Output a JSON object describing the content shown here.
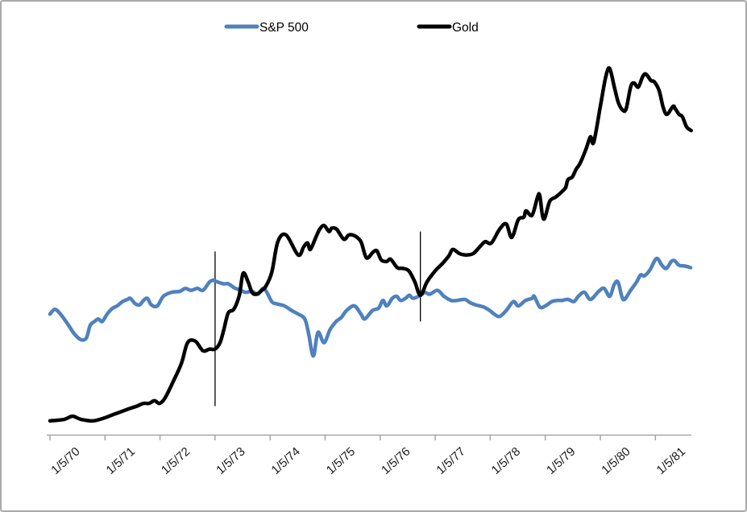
{
  "page": {
    "background": "#ffffff",
    "border_color": "#a9a9a9"
  },
  "chart_data": {
    "type": "line",
    "title": "",
    "x_axis": {
      "tick_labels": [
        "1/5/70",
        "1/5/71",
        "1/5/72",
        "1/5/73",
        "1/5/74",
        "1/5/75",
        "1/5/76",
        "1/5/77",
        "1/5/78",
        "1/5/79",
        "1/5/80",
        "1/5/81"
      ],
      "axis_color": "#a6a6a6",
      "label_color": "#1a1a1a",
      "range_years": [
        1970.0,
        1981.65
      ]
    },
    "y_axis": {
      "visible": false,
      "tick_labels": [],
      "scale": "log",
      "units_note": "axis unlabeled; values are estimated price levels (Gold $/oz, S&P 500 index) on implied log scale"
    },
    "legend": {
      "position": "top",
      "items": [
        {
          "label": "S&P 500",
          "color": "#4F81BD"
        },
        {
          "label": "Gold",
          "color": "#000000"
        }
      ]
    },
    "annotations": [
      {
        "name": "vertical-marker-jan-1973",
        "x": 1973.0,
        "v_from": 40,
        "v_to": 162
      },
      {
        "name": "vertical-marker-late-1976",
        "x": 1976.73,
        "v_from": 86,
        "v_to": 194
      }
    ],
    "series": [
      {
        "name": "S&P 500",
        "color": "#4F81BD",
        "width": 4.5,
        "points": [
          [
            1970.0,
            92
          ],
          [
            1970.09,
            96
          ],
          [
            1970.19,
            92
          ],
          [
            1970.34,
            83
          ],
          [
            1970.44,
            77
          ],
          [
            1970.56,
            73
          ],
          [
            1970.66,
            74
          ],
          [
            1970.73,
            83
          ],
          [
            1970.81,
            86
          ],
          [
            1970.88,
            88
          ],
          [
            1970.95,
            86
          ],
          [
            1971.04,
            92
          ],
          [
            1971.14,
            97
          ],
          [
            1971.22,
            99
          ],
          [
            1971.32,
            103
          ],
          [
            1971.41,
            105
          ],
          [
            1971.46,
            106
          ],
          [
            1971.55,
            101
          ],
          [
            1971.63,
            100
          ],
          [
            1971.7,
            104
          ],
          [
            1971.77,
            106
          ],
          [
            1971.84,
            100
          ],
          [
            1971.95,
            99
          ],
          [
            1972.06,
            108
          ],
          [
            1972.21,
            112
          ],
          [
            1972.36,
            113
          ],
          [
            1972.46,
            116
          ],
          [
            1972.56,
            114
          ],
          [
            1972.68,
            116
          ],
          [
            1972.78,
            114
          ],
          [
            1972.9,
            123
          ],
          [
            1972.97,
            125
          ],
          [
            1973.0,
            124
          ],
          [
            1973.15,
            121
          ],
          [
            1973.24,
            121
          ],
          [
            1973.34,
            117
          ],
          [
            1973.46,
            114
          ],
          [
            1973.56,
            112
          ],
          [
            1973.67,
            113
          ],
          [
            1973.78,
            110
          ],
          [
            1973.89,
            116
          ],
          [
            1974.03,
            103
          ],
          [
            1974.11,
            101
          ],
          [
            1974.26,
            99
          ],
          [
            1974.39,
            95
          ],
          [
            1974.51,
            92
          ],
          [
            1974.63,
            88
          ],
          [
            1974.7,
            77
          ],
          [
            1974.76,
            65
          ],
          [
            1974.8,
            64
          ],
          [
            1974.87,
            78
          ],
          [
            1974.98,
            71
          ],
          [
            1975.09,
            80
          ],
          [
            1975.2,
            86
          ],
          [
            1975.29,
            89
          ],
          [
            1975.39,
            95
          ],
          [
            1975.53,
            99
          ],
          [
            1975.65,
            92
          ],
          [
            1975.72,
            88
          ],
          [
            1975.86,
            95
          ],
          [
            1975.97,
            97
          ],
          [
            1976.05,
            104
          ],
          [
            1976.12,
            99
          ],
          [
            1976.22,
            106
          ],
          [
            1976.3,
            108
          ],
          [
            1976.37,
            104
          ],
          [
            1976.46,
            106
          ],
          [
            1976.53,
            109
          ],
          [
            1976.6,
            106
          ],
          [
            1976.73,
            109
          ],
          [
            1976.81,
            112
          ],
          [
            1976.9,
            110
          ],
          [
            1977.04,
            114
          ],
          [
            1977.16,
            108
          ],
          [
            1977.29,
            104
          ],
          [
            1977.39,
            104
          ],
          [
            1977.54,
            105
          ],
          [
            1977.63,
            102
          ],
          [
            1977.73,
            100
          ],
          [
            1977.88,
            98
          ],
          [
            1977.99,
            95
          ],
          [
            1978.07,
            92
          ],
          [
            1978.17,
            90
          ],
          [
            1978.29,
            95
          ],
          [
            1978.42,
            103
          ],
          [
            1978.51,
            99
          ],
          [
            1978.64,
            104
          ],
          [
            1978.76,
            106
          ],
          [
            1978.8,
            108
          ],
          [
            1978.9,
            98
          ],
          [
            1979.0,
            99
          ],
          [
            1979.12,
            103
          ],
          [
            1979.22,
            104
          ],
          [
            1979.3,
            104
          ],
          [
            1979.41,
            105
          ],
          [
            1979.52,
            103
          ],
          [
            1979.6,
            108
          ],
          [
            1979.71,
            112
          ],
          [
            1979.82,
            105
          ],
          [
            1979.97,
            113
          ],
          [
            1980.07,
            116
          ],
          [
            1980.17,
            108
          ],
          [
            1980.25,
            120
          ],
          [
            1980.32,
            123
          ],
          [
            1980.39,
            108
          ],
          [
            1980.44,
            105
          ],
          [
            1980.55,
            114
          ],
          [
            1980.66,
            123
          ],
          [
            1980.73,
            131
          ],
          [
            1980.8,
            130
          ],
          [
            1980.9,
            137
          ],
          [
            1981.02,
            152
          ],
          [
            1981.12,
            143
          ],
          [
            1981.2,
            139
          ],
          [
            1981.29,
            148
          ],
          [
            1981.35,
            149
          ],
          [
            1981.43,
            143
          ],
          [
            1981.54,
            142
          ],
          [
            1981.64,
            140
          ]
        ]
      },
      {
        "name": "Gold",
        "color": "#000000",
        "width": 4.5,
        "points": [
          [
            1970.0,
            35
          ],
          [
            1970.26,
            35.5
          ],
          [
            1970.41,
            36.5
          ],
          [
            1970.56,
            35.5
          ],
          [
            1970.78,
            35
          ],
          [
            1971.0,
            36
          ],
          [
            1971.14,
            37
          ],
          [
            1971.29,
            38
          ],
          [
            1971.43,
            39
          ],
          [
            1971.58,
            40
          ],
          [
            1971.7,
            41
          ],
          [
            1971.8,
            41
          ],
          [
            1971.9,
            42
          ],
          [
            1971.99,
            41
          ],
          [
            1972.09,
            43
          ],
          [
            1972.24,
            50
          ],
          [
            1972.39,
            59
          ],
          [
            1972.5,
            71
          ],
          [
            1972.64,
            72
          ],
          [
            1972.78,
            66
          ],
          [
            1972.9,
            67
          ],
          [
            1973.0,
            67
          ],
          [
            1973.09,
            71
          ],
          [
            1973.16,
            80
          ],
          [
            1973.24,
            93
          ],
          [
            1973.34,
            96
          ],
          [
            1973.44,
            109
          ],
          [
            1973.51,
            133
          ],
          [
            1973.6,
            123
          ],
          [
            1973.67,
            112
          ],
          [
            1973.75,
            110
          ],
          [
            1973.85,
            114
          ],
          [
            1973.92,
            118
          ],
          [
            1974.03,
            134
          ],
          [
            1974.14,
            177
          ],
          [
            1974.29,
            188
          ],
          [
            1974.51,
            157
          ],
          [
            1974.61,
            169
          ],
          [
            1974.68,
            175
          ],
          [
            1974.73,
            165
          ],
          [
            1974.83,
            184
          ],
          [
            1974.9,
            198
          ],
          [
            1974.98,
            205
          ],
          [
            1975.07,
            194
          ],
          [
            1975.12,
            200
          ],
          [
            1975.21,
            198
          ],
          [
            1975.34,
            181
          ],
          [
            1975.43,
            188
          ],
          [
            1975.53,
            187
          ],
          [
            1975.65,
            177
          ],
          [
            1975.75,
            153
          ],
          [
            1975.87,
            161
          ],
          [
            1975.94,
            163
          ],
          [
            1976.02,
            150
          ],
          [
            1976.12,
            148
          ],
          [
            1976.19,
            151
          ],
          [
            1976.31,
            140
          ],
          [
            1976.41,
            139
          ],
          [
            1976.52,
            136
          ],
          [
            1976.63,
            123
          ],
          [
            1976.73,
            109
          ],
          [
            1976.85,
            123
          ],
          [
            1977.0,
            136
          ],
          [
            1977.14,
            146
          ],
          [
            1977.25,
            156
          ],
          [
            1977.32,
            165
          ],
          [
            1977.44,
            159
          ],
          [
            1977.55,
            157
          ],
          [
            1977.69,
            159
          ],
          [
            1977.83,
            171
          ],
          [
            1977.91,
            177
          ],
          [
            1978.02,
            175
          ],
          [
            1978.17,
            198
          ],
          [
            1978.29,
            208
          ],
          [
            1978.39,
            184
          ],
          [
            1978.51,
            216
          ],
          [
            1978.61,
            221
          ],
          [
            1978.65,
            234
          ],
          [
            1978.76,
            225
          ],
          [
            1978.86,
            265
          ],
          [
            1978.9,
            268
          ],
          [
            1978.97,
            217
          ],
          [
            1979.08,
            255
          ],
          [
            1979.19,
            265
          ],
          [
            1979.3,
            278
          ],
          [
            1979.37,
            289
          ],
          [
            1979.41,
            310
          ],
          [
            1979.49,
            318
          ],
          [
            1979.56,
            341
          ],
          [
            1979.63,
            359
          ],
          [
            1979.74,
            409
          ],
          [
            1979.82,
            457
          ],
          [
            1979.88,
            435
          ],
          [
            1980.0,
            602
          ],
          [
            1980.1,
            789
          ],
          [
            1980.17,
            848
          ],
          [
            1980.26,
            708
          ],
          [
            1980.33,
            621
          ],
          [
            1980.41,
            581
          ],
          [
            1980.47,
            590
          ],
          [
            1980.55,
            717
          ],
          [
            1980.61,
            744
          ],
          [
            1980.69,
            717
          ],
          [
            1980.77,
            789
          ],
          [
            1980.83,
            806
          ],
          [
            1980.92,
            760
          ],
          [
            1980.98,
            752
          ],
          [
            1981.07,
            692
          ],
          [
            1981.14,
            598
          ],
          [
            1981.21,
            560
          ],
          [
            1981.32,
            602
          ],
          [
            1981.36,
            590
          ],
          [
            1981.43,
            560
          ],
          [
            1981.49,
            548
          ],
          [
            1981.57,
            499
          ],
          [
            1981.65,
            484
          ]
        ]
      }
    ]
  }
}
